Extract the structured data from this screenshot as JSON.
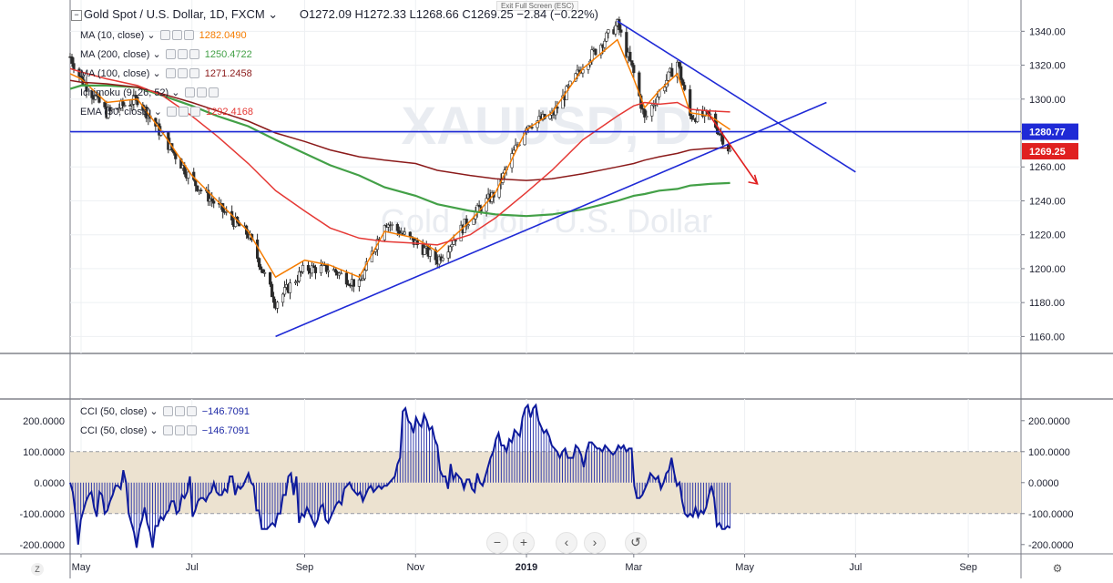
{
  "header": {
    "symbol": "Gold Spot / U.S. Dollar, 1D, FXCM",
    "ohlc": "O1272.09 H1272.33 L1268.66 C1269.25 −2.84 (−0.22%)",
    "esc_hint": "Exit Full Screen (ESC)"
  },
  "watermark": {
    "line1": "XAUUSD, D",
    "line2": "Gold Spot / U.S. Dollar"
  },
  "indicators": [
    {
      "name": "MA (10, close)",
      "value": "1282.0490",
      "color": "#f57c00"
    },
    {
      "name": "MA (200, close)",
      "value": "1250.4722",
      "color": "#43a047"
    },
    {
      "name": "MA (100, close)",
      "value": "1271.2458",
      "color": "#8b1a1a"
    },
    {
      "name": "Ichimoku (9, 26, 52)",
      "value": "",
      "color": "#2196f3"
    },
    {
      "name": "EMA (50, close)",
      "value": "1292.4168",
      "color": "#e53935"
    }
  ],
  "cci_legends": [
    {
      "name": "CCI (50, close)",
      "value": "−146.7091"
    },
    {
      "name": "CCI (50, close)",
      "value": "−146.7091"
    }
  ],
  "price_tags": {
    "resistance": {
      "label": "1280.77",
      "color": "#1f2ad6"
    },
    "last": {
      "label": "1269.25",
      "color": "#e02020"
    }
  },
  "nav_buttons": [
    "−",
    "+",
    "‹",
    "›",
    "↺"
  ],
  "corner_labels": {
    "left": "Z",
    "right": "⚙"
  },
  "chart_data": {
    "type": "candlestick",
    "x": [
      "Apr 25 2018",
      "May 1",
      "May 15",
      "Jun 1",
      "Jun 15",
      "Jul 1",
      "Jul 15",
      "Aug 1",
      "Aug 16",
      "Sep 1",
      "Sep 15",
      "Oct 1",
      "Oct 15",
      "Nov 1",
      "Nov 13",
      "Dec 1",
      "Dec 15",
      "Jan 1 2019",
      "Jan 15",
      "Feb 1",
      "Feb 20",
      "Mar 1",
      "Mar 7",
      "Mar 15",
      "Mar 25",
      "Apr 1",
      "Apr 12",
      "Apr 23"
    ],
    "close": [
      1325,
      1312,
      1292,
      1300,
      1278,
      1252,
      1237,
      1220,
      1180,
      1200,
      1200,
      1190,
      1228,
      1215,
      1205,
      1230,
      1245,
      1285,
      1290,
      1320,
      1344,
      1315,
      1288,
      1304,
      1322,
      1290,
      1290,
      1269.25
    ],
    "x_ticks": [
      "May",
      "Jul",
      "Sep",
      "Nov",
      "2019",
      "Mar",
      "May",
      "Jul",
      "Sep"
    ],
    "y_ticks": [
      "1340.00",
      "1320.00",
      "1300.00",
      "1280.00",
      "1260.00",
      "1240.00",
      "1220.00",
      "1200.00",
      "1180.00",
      "1160.00"
    ],
    "ylim": [
      1150,
      1352
    ],
    "series": [
      {
        "name": "MA (10, close)",
        "color": "#f57c00",
        "values": [
          1315,
          1312,
          1298,
          1300,
          1280,
          1255,
          1240,
          1222,
          1195,
          1205,
          1202,
          1195,
          1222,
          1218,
          1210,
          1228,
          1245,
          1282,
          1292,
          1318,
          1335,
          1312,
          1295,
          1305,
          1315,
          1292,
          1290,
          1282
        ]
      },
      {
        "name": "MA (200, close)",
        "color": "#43a047",
        "values": [
          1306,
          1308,
          1308,
          1307,
          1302,
          1296,
          1290,
          1284,
          1276,
          1268,
          1261,
          1255,
          1248,
          1243,
          1238,
          1234,
          1232,
          1231,
          1232,
          1235,
          1240,
          1243,
          1244,
          1246,
          1247,
          1249,
          1250,
          1250.5
        ]
      },
      {
        "name": "MA (100, close)",
        "color": "#8b1a1a",
        "values": [
          1311,
          1310,
          1309,
          1307,
          1303,
          1298,
          1293,
          1287,
          1280,
          1275,
          1270,
          1266,
          1264,
          1262,
          1258,
          1255,
          1253,
          1252,
          1253,
          1256,
          1260,
          1262,
          1264,
          1266,
          1268,
          1270,
          1271,
          1271.2
        ]
      },
      {
        "name": "EMA (50, close)",
        "color": "#e53935",
        "values": [
          1318,
          1316,
          1312,
          1308,
          1302,
          1290,
          1278,
          1262,
          1246,
          1234,
          1224,
          1218,
          1216,
          1215,
          1214,
          1220,
          1230,
          1245,
          1258,
          1276,
          1290,
          1296,
          1298,
          1297,
          1298,
          1294,
          1293,
          1292.4
        ]
      }
    ],
    "trendlines": [
      {
        "x": [
          "Aug 16 2018",
          "Jun 15 2019"
        ],
        "y": [
          1160,
          1298
        ],
        "color": "#1f2ad6"
      },
      {
        "x": [
          "Feb 20 2019",
          "Jul 1 2019"
        ],
        "y": [
          1346,
          1257
        ],
        "color": "#1f2ad6"
      },
      {
        "x": [
          "Apr 25 2018",
          "Sep 30 2019"
        ],
        "y": [
          1280.77,
          1280.77
        ],
        "color": "#1f2ad6"
      }
    ],
    "arrow": {
      "x": [
        "Apr 10 2019",
        "May 8 2019"
      ],
      "y": [
        1293,
        1250
      ],
      "color": "#e02020"
    },
    "cci": {
      "name": "CCI (50, close)",
      "ylim": [
        -230,
        270
      ],
      "y_ticks": [
        "200.0000",
        "100.0000",
        "0.0000",
        "-100.0000",
        "-200.0000"
      ],
      "band": [
        -100,
        100
      ],
      "values": [
        0,
        -30,
        -100,
        -200,
        -120,
        -90,
        -60,
        -40,
        -30,
        -80,
        -110,
        -30,
        -40,
        -100,
        -90,
        -60,
        -40,
        -10,
        -10,
        -20,
        40,
        0,
        -100,
        -130,
        -160,
        -210,
        -150,
        -120,
        -80,
        -130,
        -160,
        -210,
        -140,
        -140,
        -110,
        -120,
        -100,
        -90,
        -60,
        -60,
        -100,
        -90,
        -40,
        -50,
        -30,
        20,
        -110,
        -90,
        -60,
        -50,
        -50,
        -60,
        -40,
        -30,
        0,
        -30,
        -40,
        -40,
        -20,
        -30,
        20,
        20,
        -40,
        -10,
        -20,
        -10,
        10,
        30,
        0,
        -10,
        -90,
        -90,
        -150,
        -150,
        -150,
        -140,
        -130,
        -140,
        -100,
        -100,
        -40,
        -40,
        20,
        30,
        -40,
        20,
        -130,
        -100,
        -110,
        -80,
        -100,
        -120,
        -140,
        -120,
        -80,
        -70,
        -120,
        -130,
        -110,
        -90,
        -70,
        -60,
        -70,
        -20,
        -10,
        0,
        -20,
        -30,
        -40,
        -30,
        -60,
        -40,
        -20,
        -10,
        -30,
        -20,
        -10,
        -20,
        -10,
        -10,
        0,
        10,
        20,
        60,
        80,
        230,
        240,
        200,
        190,
        160,
        210,
        190,
        180,
        220,
        200,
        170,
        180,
        140,
        120,
        40,
        20,
        20,
        -20,
        60,
        10,
        30,
        20,
        10,
        -20,
        10,
        10,
        -20,
        -30,
        30,
        0,
        -10,
        20,
        50,
        80,
        100,
        140,
        160,
        120,
        120,
        100,
        140,
        130,
        170,
        160,
        150,
        210,
        240,
        250,
        210,
        240,
        250,
        200,
        180,
        160,
        170,
        150,
        120,
        110,
        100,
        80,
        100,
        110,
        80,
        80,
        80,
        120,
        110,
        90,
        50,
        100,
        130,
        130,
        120,
        110,
        110,
        100,
        120,
        110,
        100,
        90,
        100,
        120,
        110,
        120,
        100,
        110,
        110,
        -10,
        -50,
        -50,
        -40,
        -20,
        0,
        30,
        20,
        10,
        20,
        -20,
        0,
        30,
        40,
        80,
        30,
        -10,
        0,
        -60,
        -100,
        -110,
        -100,
        -110,
        -80,
        -110,
        -90,
        -100,
        -80,
        -40,
        -10,
        -50,
        -140,
        -130,
        -150,
        -150,
        -140,
        -146.7
      ]
    }
  }
}
